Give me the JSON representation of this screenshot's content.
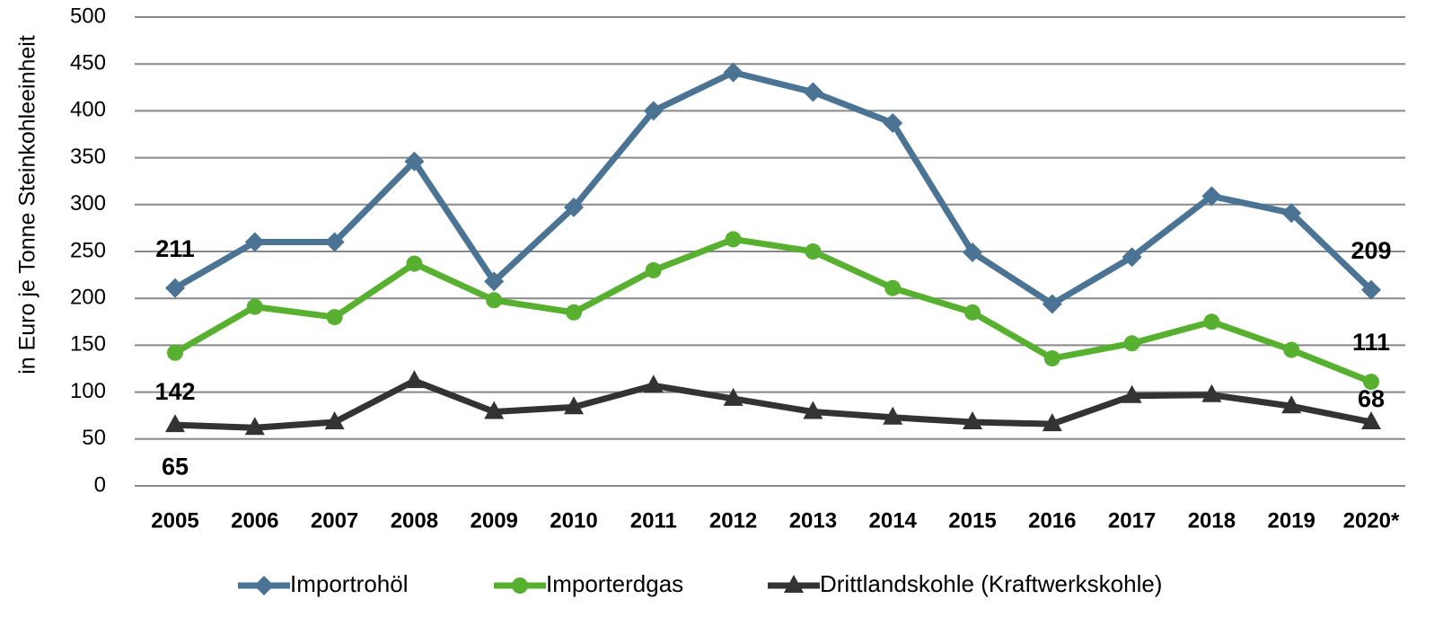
{
  "chart_data": {
    "type": "line",
    "ylabel": "in Euro je Tonne Steinkohleeinheit",
    "categories": [
      "2005",
      "2006",
      "2007",
      "2008",
      "2009",
      "2010",
      "2011",
      "2012",
      "2013",
      "2014",
      "2015",
      "2016",
      "2017",
      "2018",
      "2019",
      "2020*"
    ],
    "series": [
      {
        "name": "Importrohöl",
        "color": "#4a7394",
        "marker": "diamond",
        "values": [
          211,
          260,
          260,
          346,
          218,
          297,
          400,
          441,
          420,
          387,
          249,
          194,
          244,
          309,
          291,
          209
        ]
      },
      {
        "name": "Importerdgas",
        "color": "#58b030",
        "marker": "circle",
        "values": [
          142,
          191,
          180,
          237,
          198,
          185,
          230,
          263,
          250,
          211,
          185,
          136,
          152,
          175,
          145,
          111
        ]
      },
      {
        "name": "Drittlandskohle (Kraftwerkskohle)",
        "color": "#333333",
        "marker": "triangle",
        "values": [
          65,
          62,
          68,
          112,
          79,
          84,
          107,
          93,
          79,
          73,
          68,
          66,
          96,
          97,
          85,
          68
        ]
      }
    ],
    "ylim": [
      0,
      500
    ],
    "yticks": [
      0,
      50,
      100,
      150,
      200,
      250,
      300,
      350,
      400,
      450,
      500
    ],
    "grid": true,
    "legend": "bottom"
  }
}
